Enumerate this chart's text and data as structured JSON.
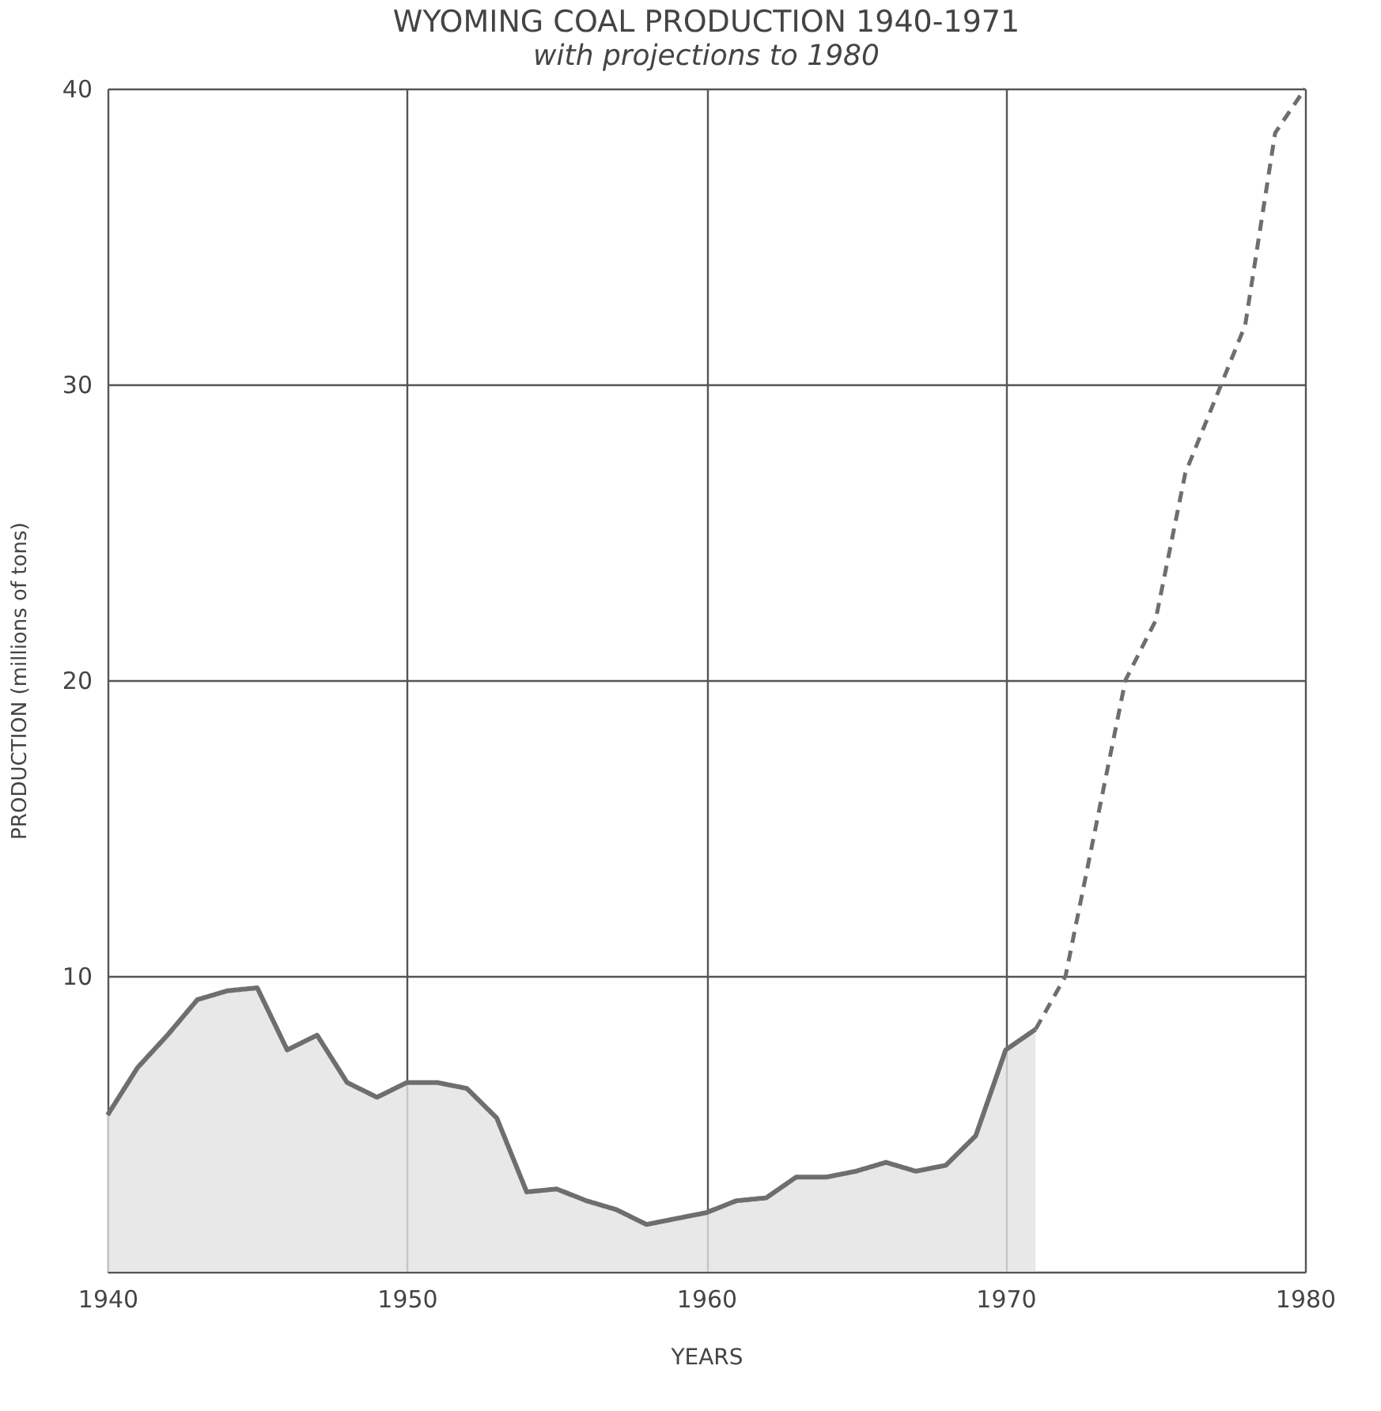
{
  "chart_data": {
    "type": "line",
    "title": "WYOMING COAL PRODUCTION 1940-1971",
    "subtitle": "with projections to 1980",
    "xlabel": "YEARS",
    "ylabel": "PRODUCTION (millions of tons)",
    "xlim": [
      1940,
      1980
    ],
    "xticks": [
      1940,
      1950,
      1960,
      1970,
      1980
    ],
    "ylim": [
      0,
      40
    ],
    "yticks": [
      {
        "value": 0,
        "label": null
      },
      10,
      20,
      30,
      40
    ],
    "grid": true,
    "series": [
      {
        "type": "area",
        "color": "#6e6e6e",
        "line_style": "solid",
        "x": [
          1940,
          1941,
          1942,
          1943,
          1944,
          1945,
          1946,
          1947,
          1948,
          1949,
          1950,
          1951,
          1952,
          1953,
          1954,
          1955,
          1956,
          1957,
          1958,
          1959,
          1960,
          1961,
          1962,
          1963,
          1964,
          1965,
          1966,
          1967,
          1968,
          1969,
          1970,
          1971
        ],
        "values": [
          5.3,
          6.9,
          8.0,
          9.2,
          9.5,
          9.6,
          7.5,
          8.0,
          6.4,
          5.9,
          6.4,
          6.4,
          6.2,
          5.2,
          2.7,
          2.8,
          2.4,
          2.1,
          1.6,
          1.8,
          2.0,
          2.4,
          2.5,
          3.2,
          3.2,
          3.4,
          3.7,
          3.4,
          3.6,
          4.6,
          7.5,
          8.2
        ]
      },
      {
        "color": "#6e6e6e",
        "line_style": "dashed",
        "x": [
          1971,
          1972,
          1973,
          1974,
          1975,
          1976,
          1977,
          1978,
          1979,
          1980
        ],
        "values": [
          8.2,
          10,
          15,
          20,
          22,
          27,
          29.5,
          32,
          38.5,
          40
        ]
      }
    ]
  }
}
